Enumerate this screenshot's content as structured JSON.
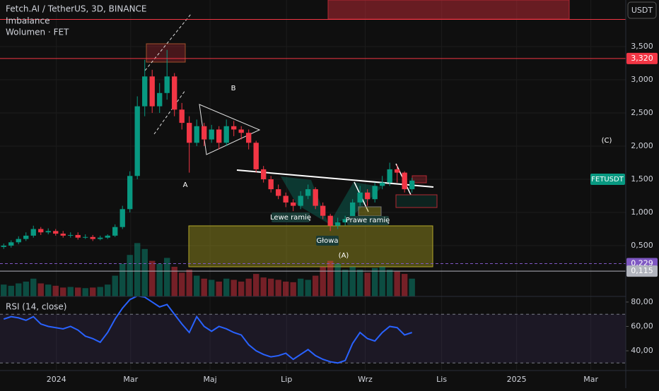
{
  "header": {
    "title": "Fetch.AI / TetherUS, 3D, BINANCE",
    "indicator_1": "Imbalance",
    "indicator_2": "Wolumen · FET",
    "currency": "USDT",
    "symbol_label": "FETUSDT"
  },
  "annotations": {
    "a": "A",
    "b": "B",
    "c": "(C)",
    "a2": "(A)",
    "left_shoulder": "Lewe ramię",
    "right_shoulder": "Prawe ramię",
    "head": "Głowa"
  },
  "chart_data": [
    {
      "type": "candlestick",
      "up_color": "#089981",
      "down_color": "#f23645",
      "open": [
        0.48,
        0.5,
        0.55,
        0.6,
        0.65,
        0.75,
        0.7,
        0.72,
        0.68,
        0.65,
        0.66,
        0.62,
        0.63,
        0.6,
        0.62,
        0.65,
        0.78,
        1.05,
        1.55,
        2.6,
        3.05,
        2.6,
        2.8,
        3.05,
        2.55,
        2.35,
        2.05,
        2.3,
        2.1,
        2.25,
        2.05,
        2.3,
        2.25,
        2.2,
        2.05,
        1.65,
        1.5,
        1.35,
        1.25,
        1.15,
        1.1,
        1.25,
        1.35,
        1.1,
        0.95,
        0.8,
        0.85,
        0.9,
        1.15,
        1.3,
        1.2,
        1.4,
        1.45,
        1.65,
        1.6,
        1.35
      ],
      "high": [
        0.53,
        0.58,
        0.64,
        0.7,
        0.8,
        0.78,
        0.76,
        0.75,
        0.72,
        0.7,
        0.7,
        0.67,
        0.66,
        0.65,
        0.67,
        0.82,
        1.1,
        1.62,
        2.75,
        3.3,
        3.15,
        2.95,
        3.45,
        3.1,
        2.65,
        2.45,
        2.4,
        2.35,
        2.32,
        2.3,
        2.4,
        2.38,
        2.3,
        2.25,
        2.08,
        1.7,
        1.55,
        1.42,
        1.3,
        1.2,
        1.32,
        1.42,
        1.38,
        1.15,
        0.98,
        0.92,
        0.95,
        1.2,
        1.4,
        1.35,
        1.45,
        1.55,
        1.75,
        1.72,
        1.62,
        1.52
      ],
      "low": [
        0.45,
        0.47,
        0.52,
        0.57,
        0.62,
        0.66,
        0.67,
        0.65,
        0.62,
        0.62,
        0.59,
        0.6,
        0.57,
        0.58,
        0.6,
        0.63,
        0.75,
        1.0,
        1.5,
        2.45,
        2.5,
        2.5,
        2.7,
        2.45,
        2.25,
        1.6,
        2.0,
        2.0,
        2.05,
        1.95,
        2.0,
        2.15,
        2.1,
        1.95,
        1.6,
        1.45,
        1.3,
        1.2,
        1.08,
        1.02,
        1.05,
        1.2,
        1.05,
        0.9,
        0.72,
        0.75,
        0.8,
        0.85,
        1.1,
        1.1,
        1.15,
        1.35,
        1.4,
        1.45,
        1.3,
        1.3
      ],
      "close": [
        0.5,
        0.55,
        0.6,
        0.65,
        0.75,
        0.7,
        0.72,
        0.68,
        0.65,
        0.66,
        0.62,
        0.63,
        0.6,
        0.62,
        0.65,
        0.78,
        1.05,
        1.55,
        2.6,
        3.05,
        2.6,
        2.8,
        3.05,
        2.55,
        2.35,
        2.05,
        2.3,
        2.1,
        2.25,
        2.05,
        2.3,
        2.25,
        2.2,
        2.05,
        1.65,
        1.5,
        1.35,
        1.25,
        1.15,
        1.1,
        1.25,
        1.35,
        1.1,
        0.95,
        0.8,
        0.85,
        0.9,
        1.15,
        1.3,
        1.2,
        1.4,
        1.45,
        1.65,
        1.6,
        1.35,
        1.48
      ],
      "volume": [
        20,
        18,
        22,
        25,
        30,
        22,
        20,
        18,
        15,
        16,
        15,
        14,
        15,
        16,
        20,
        35,
        55,
        70,
        90,
        80,
        60,
        55,
        65,
        50,
        40,
        45,
        35,
        30,
        28,
        25,
        30,
        28,
        25,
        30,
        38,
        32,
        30,
        28,
        25,
        24,
        30,
        28,
        35,
        50,
        60,
        55,
        45,
        50,
        45,
        40,
        48,
        50,
        45,
        42,
        38,
        30
      ],
      "volume_lim": [
        0,
        500
      ],
      "xlim": [
        0,
        84.3
      ],
      "ylim": [
        -0.266,
        4.202
      ],
      "yticks": [
        {
          "value": 3.5,
          "label": "3,500"
        },
        {
          "value": 3.0,
          "label": "3,000"
        },
        {
          "value": 2.5,
          "label": "2,500"
        },
        {
          "value": 2.0,
          "label": "2,000"
        },
        {
          "value": 1.5,
          "label": "1,500"
        },
        {
          "value": 1.0,
          "label": "1,000"
        },
        {
          "value": 0.5,
          "label": "0,500"
        }
      ],
      "xticks": [
        {
          "value": 7.6,
          "label": "2024"
        },
        {
          "value": 17.6,
          "label": "Mar"
        },
        {
          "value": 28.3,
          "label": "Maj"
        },
        {
          "value": 38.6,
          "label": "Lip"
        },
        {
          "value": 49.2,
          "label": "Wrz"
        },
        {
          "value": 59.5,
          "label": "Lis"
        },
        {
          "value": 69.6,
          "label": "2025"
        },
        {
          "value": 79.6,
          "label": "Mar"
        }
      ],
      "price_lines": [
        {
          "value": 3.91,
          "color": "#f23645"
        },
        {
          "value": 3.32,
          "label": "3,320",
          "color": "#f23645"
        },
        {
          "value": 0.229,
          "label": "0,229",
          "color": "#7e57c2",
          "dashed": true
        },
        {
          "value": 0.115,
          "label": "0,115",
          "color": "#b2b5be"
        }
      ],
      "grid": true
    },
    {
      "type": "line",
      "title": "RSI (14, close)",
      "color": "#2962ff",
      "values": [
        66,
        68,
        67,
        65,
        68,
        62,
        60,
        59,
        58,
        60,
        57,
        52,
        50,
        47,
        55,
        66,
        75,
        82,
        85,
        84,
        80,
        76,
        78,
        70,
        62,
        55,
        68,
        60,
        56,
        60,
        58,
        55,
        53,
        45,
        40,
        37,
        35,
        36,
        38,
        33,
        37,
        41,
        36,
        33,
        31,
        30,
        32,
        46,
        55,
        50,
        48,
        55,
        60,
        59,
        53,
        55
      ],
      "xlim": [
        0,
        84.3
      ],
      "ylim": [
        23.8,
        84.6
      ],
      "bands": [
        30,
        70
      ],
      "yticks": [
        {
          "value": 80,
          "label": "80,00"
        },
        {
          "value": 60,
          "label": "60,00"
        },
        {
          "value": 40,
          "label": "40,00"
        }
      ]
    }
  ]
}
